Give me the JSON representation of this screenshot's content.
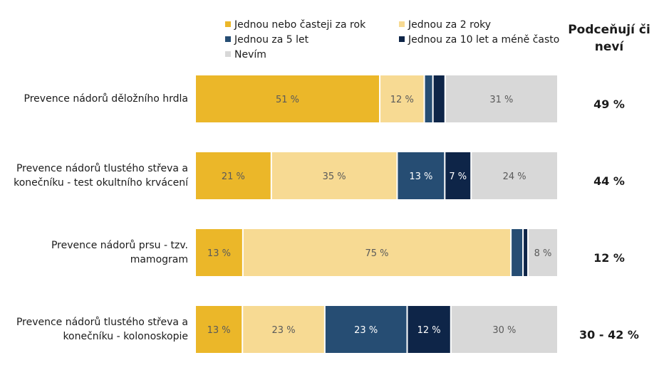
{
  "legend": [
    {
      "label": "Jednou nebo časteji za rok",
      "color": "#ebb729"
    },
    {
      "label": "Jednou za 2 roky",
      "color": "#f7da93"
    },
    {
      "label": "Jednou za 5 let",
      "color": "#264d73"
    },
    {
      "label": "Jednou za 10 let a méně často",
      "color": "#0e2548"
    },
    {
      "label": "Nevím",
      "color": "#d8d8d8"
    }
  ],
  "side_header": "Podceňují či neví",
  "chart_data": {
    "type": "bar",
    "orientation": "horizontal",
    "stacked": true,
    "categories": [
      "Prevence nádorů děložního hrdla",
      "Prevence nádorů tlustého střeva a konečníku - test okultního krvácení",
      "Prevence nádorů prsu - tzv. mamogram",
      "Prevence nádorů tlustého střeva a konečníku - kolonoskopie"
    ],
    "series": [
      {
        "name": "Jednou nebo časteji za rok",
        "values": [
          51,
          21,
          13,
          13
        ],
        "labels": [
          "51 %",
          "21 %",
          "13 %",
          "13 %"
        ]
      },
      {
        "name": "Jednou za 2 roky",
        "values": [
          12,
          35,
          75,
          23
        ],
        "labels": [
          "12 %",
          "35 %",
          "75 %",
          "23 %"
        ]
      },
      {
        "name": "Jednou za 5 let",
        "values": [
          2,
          13,
          3,
          23
        ],
        "labels": [
          "",
          "13 %",
          "",
          "23 %"
        ]
      },
      {
        "name": "Jednou za 10 let a méně často",
        "values": [
          3,
          7,
          1,
          12
        ],
        "labels": [
          "",
          "7 %",
          "",
          "12 %"
        ]
      },
      {
        "name": "Nevím",
        "values": [
          31,
          24,
          8,
          30
        ],
        "labels": [
          "31 %",
          "24 %",
          "8 %",
          "30 %"
        ]
      }
    ],
    "side_values": [
      "49 %",
      "44 %",
      "12 %",
      "30 - 42 %"
    ]
  }
}
